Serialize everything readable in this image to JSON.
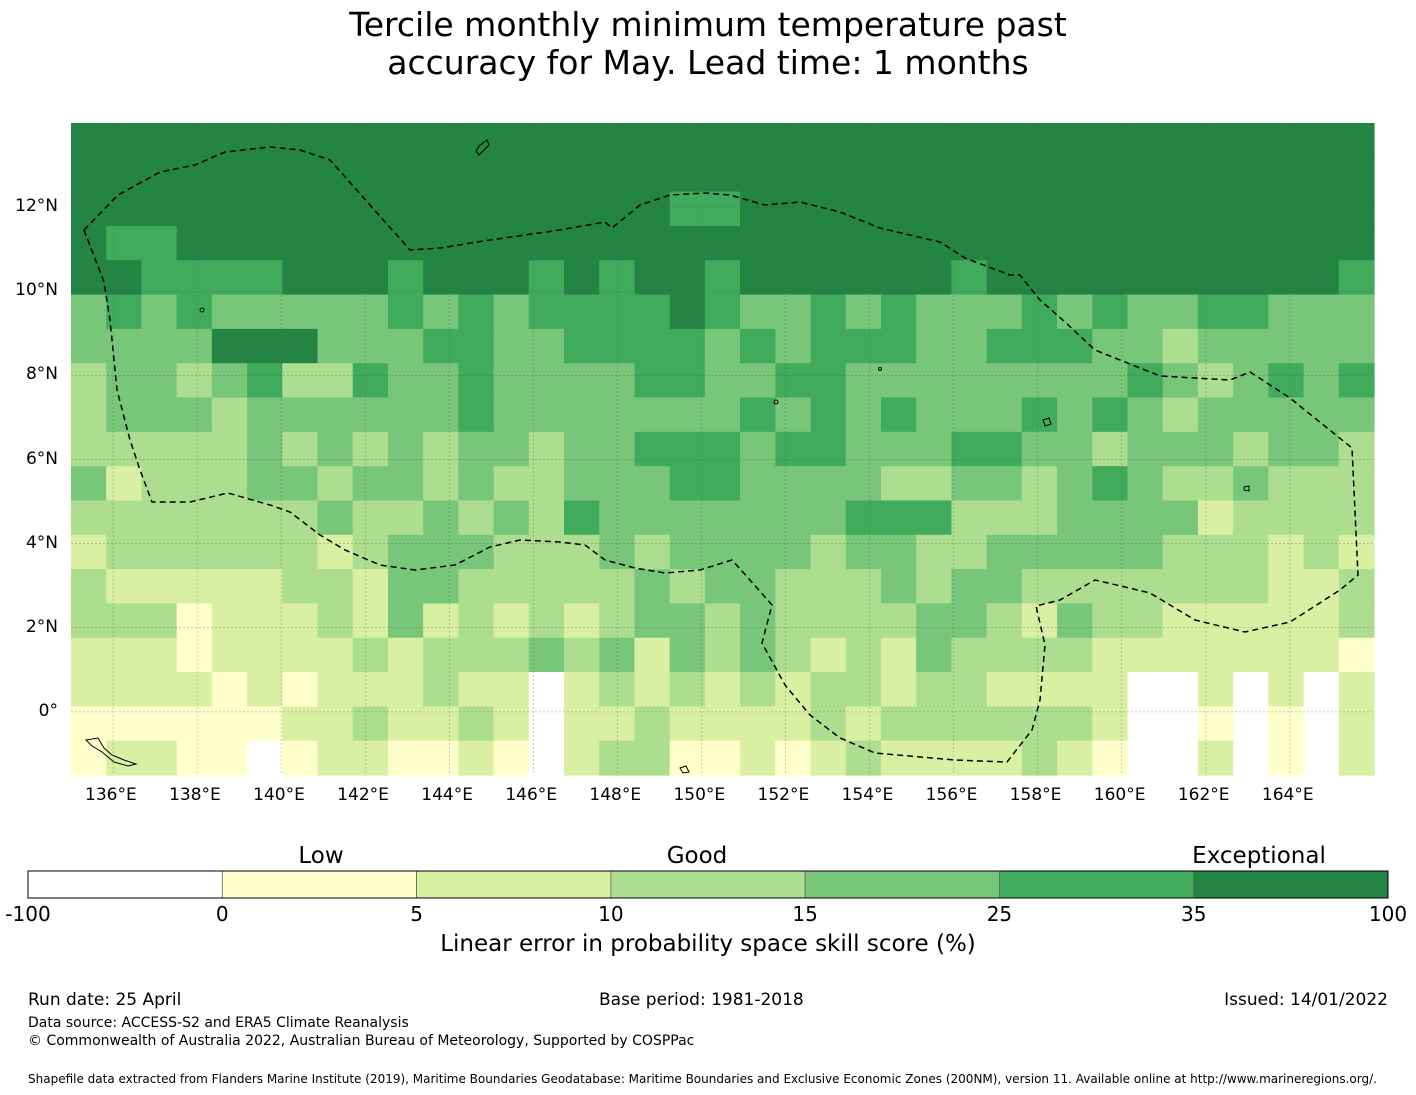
{
  "title_line1": "Tercile monthly minimum temperature past",
  "title_line2": "accuracy for May. Lead time: 1 months",
  "map": {
    "lon_labels": [
      "136°E",
      "138°E",
      "140°E",
      "142°E",
      "144°E",
      "146°E",
      "148°E",
      "150°E",
      "152°E",
      "154°E",
      "156°E",
      "158°E",
      "160°E",
      "162°E",
      "164°E"
    ],
    "lat_labels": [
      "12°N",
      "10°N",
      "8°N",
      "6°N",
      "4°N",
      "2°N",
      "0°"
    ],
    "lon_range": [
      135.0,
      166.0
    ],
    "lat_range": [
      -1.5,
      14.0
    ],
    "grid": "on"
  },
  "colorbar": {
    "categories": [
      "Low",
      "Good",
      "Exceptional"
    ],
    "ticks": [
      "-100",
      "0",
      "5",
      "10",
      "15",
      "25",
      "35",
      "100"
    ],
    "colors": [
      "#ffffff",
      "#ffffcc",
      "#d9f0a3",
      "#addd8e",
      "#78c679",
      "#41ab5d",
      "#238443"
    ],
    "label": "Linear error in probability space skill score (%)"
  },
  "footer": {
    "run_date": "Run date: 25 April",
    "base_period": "Base period: 1981-2018",
    "issued": "Issued: 14/01/2022",
    "data_source": "Data source: ACCESS-S2 and ERA5 Climate Reanalysis",
    "copyright": "© Commonwealth of Australia 2022, Australian Bureau of Meteorology, Supported by COSPPac",
    "shapefile": "Shapefile data extracted from Flanders Marine Institute (2019), Maritime Boundaries Geodatabase: Maritime Boundaries and Exclusive Economic Zones (200NM), version 11. Available online at http://www.marineregions.org/."
  }
}
